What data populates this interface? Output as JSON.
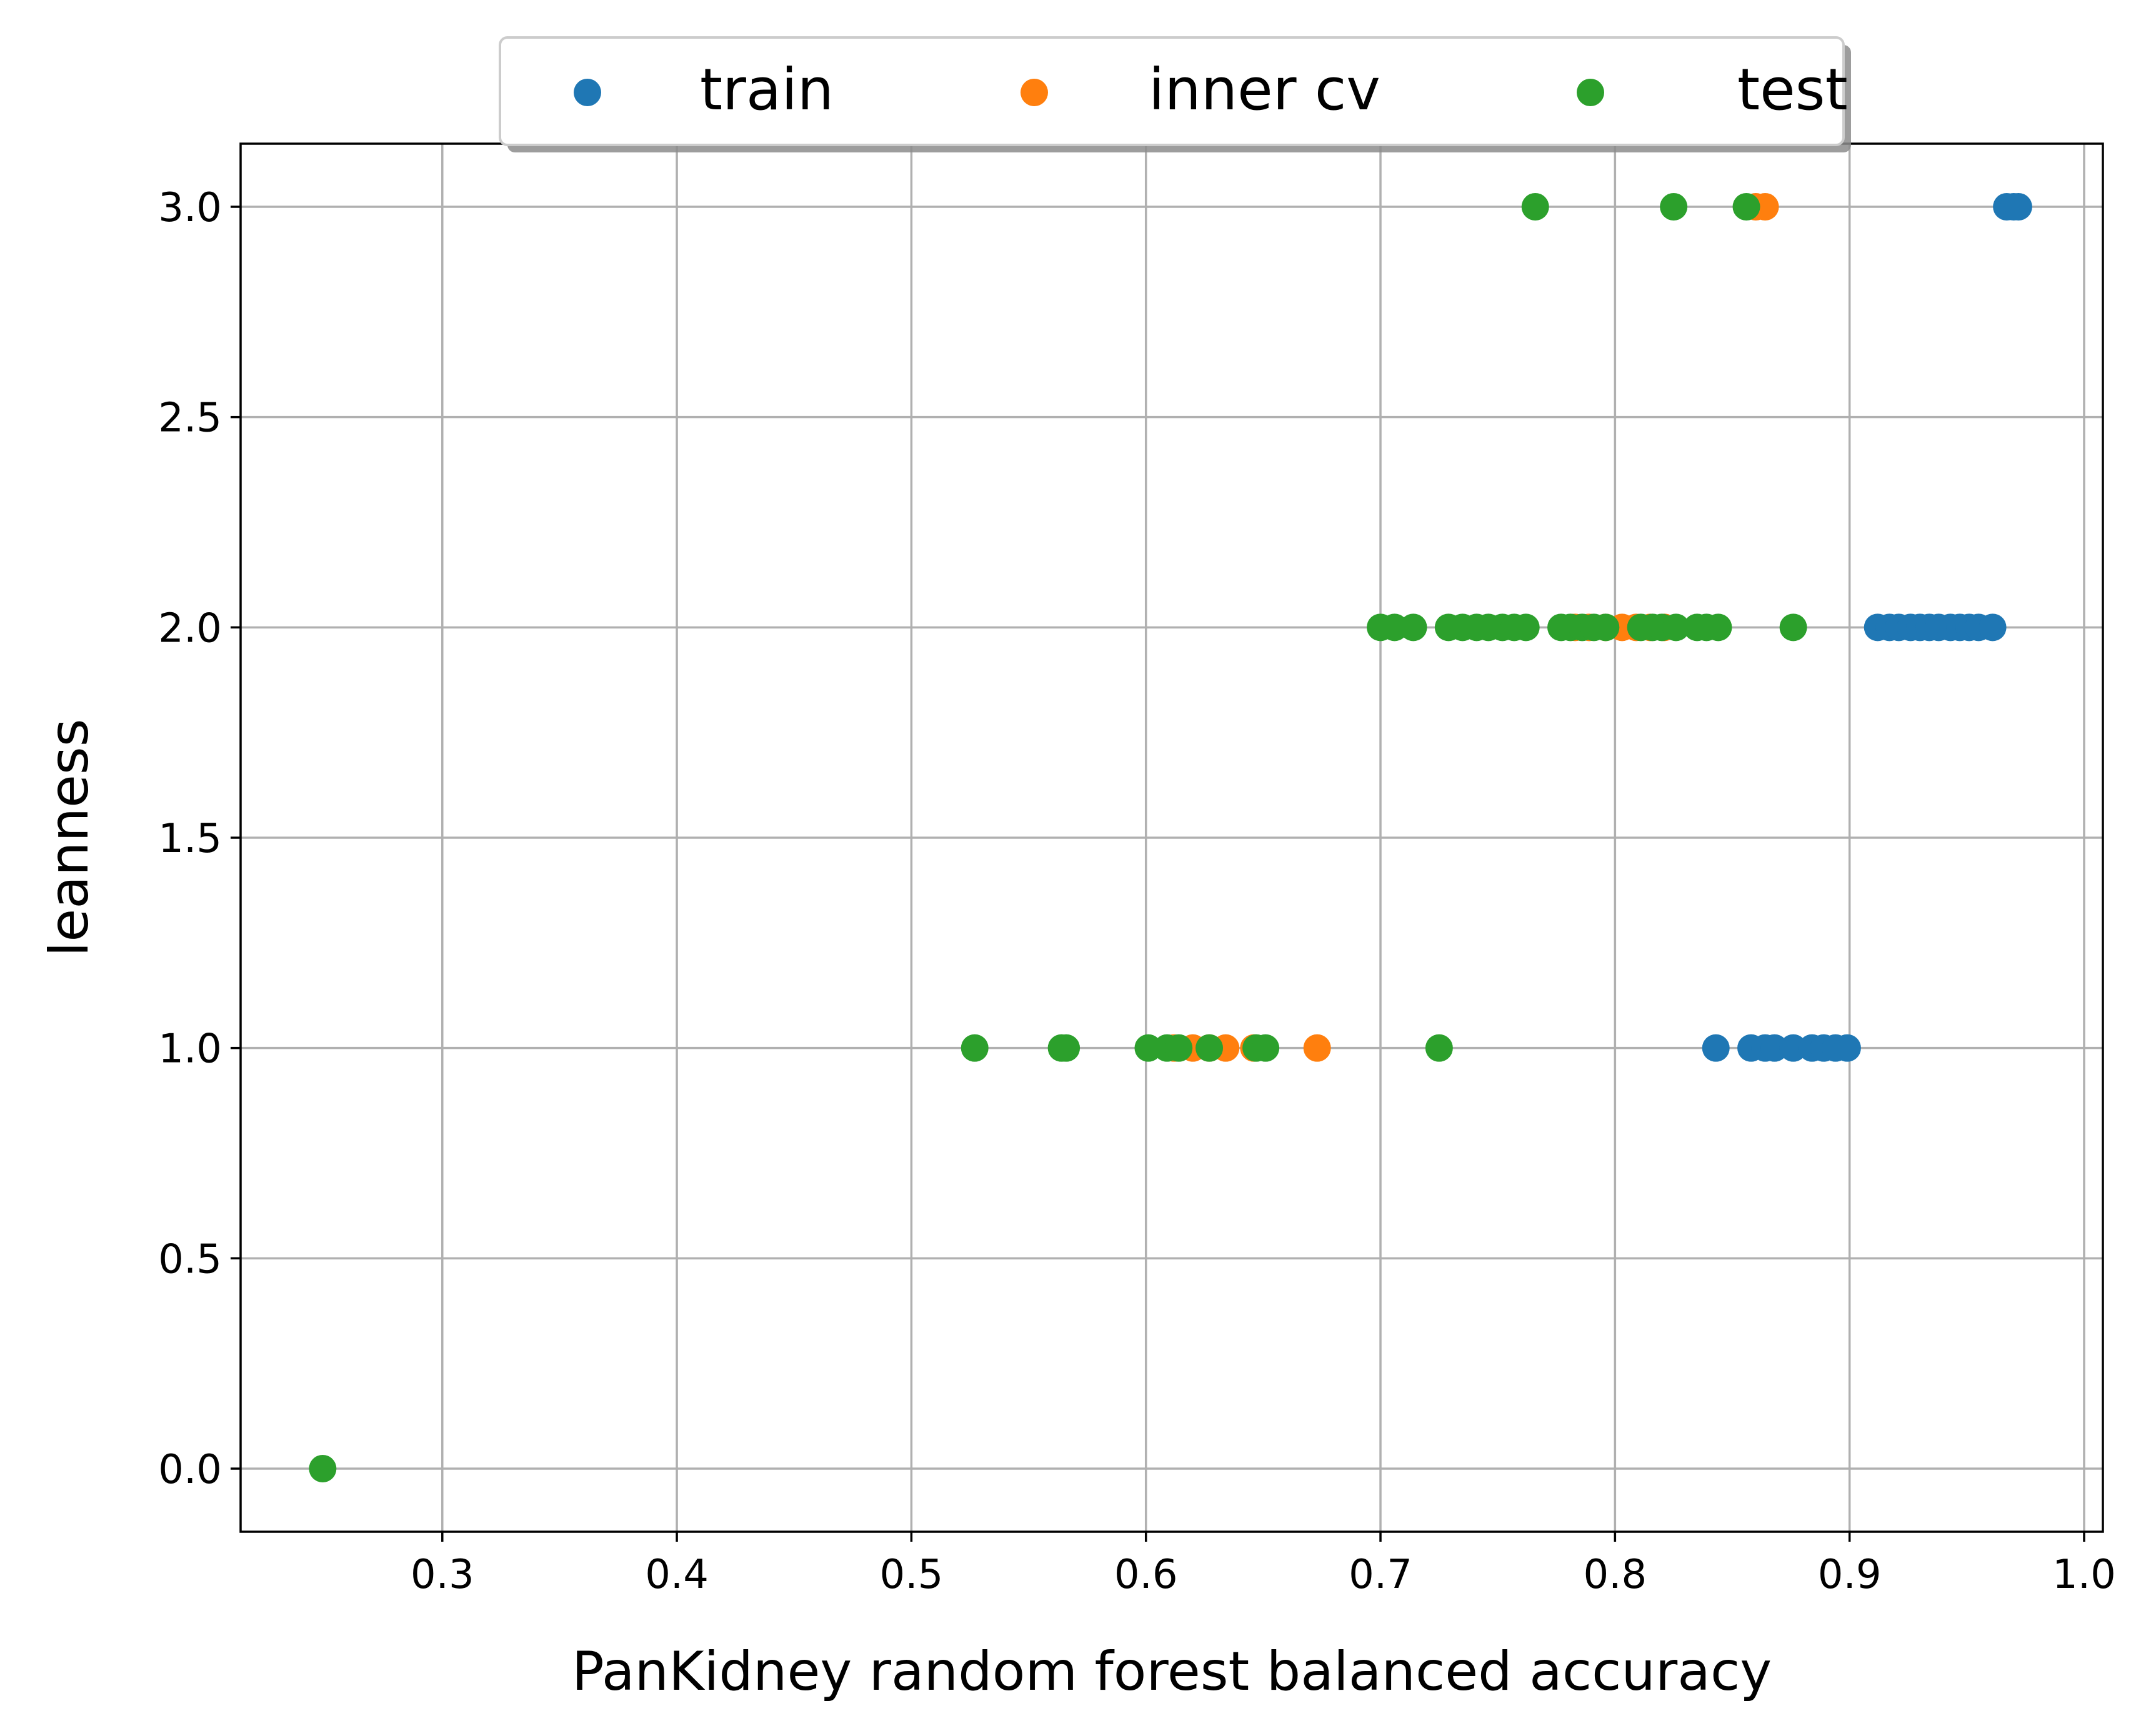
{
  "chart_data": {
    "type": "scatter",
    "xlabel": "PanKidney random forest balanced accuracy",
    "ylabel": "leanness",
    "xlim": [
      0.214,
      1.008
    ],
    "ylim": [
      -0.15,
      3.15
    ],
    "xticks": [
      0.3,
      0.4,
      0.5,
      0.6,
      0.7,
      0.8,
      0.9,
      1.0
    ],
    "xtick_labels": [
      "0.3",
      "0.4",
      "0.5",
      "0.6",
      "0.7",
      "0.8",
      "0.9",
      "1.0"
    ],
    "yticks": [
      0.0,
      0.5,
      1.0,
      1.5,
      2.0,
      2.5,
      3.0
    ],
    "ytick_labels": [
      "0.0",
      "0.5",
      "1.0",
      "1.5",
      "2.0",
      "2.5",
      "3.0"
    ],
    "grid": true,
    "legend": {
      "placement": "top-center",
      "columns": 3
    },
    "series": [
      {
        "name": "train",
        "color": "#1f77b4",
        "points": [
          {
            "x": 0.843,
            "y": 1
          },
          {
            "x": 0.858,
            "y": 1
          },
          {
            "x": 0.864,
            "y": 1
          },
          {
            "x": 0.868,
            "y": 1
          },
          {
            "x": 0.876,
            "y": 1
          },
          {
            "x": 0.884,
            "y": 1
          },
          {
            "x": 0.889,
            "y": 1
          },
          {
            "x": 0.894,
            "y": 1
          },
          {
            "x": 0.899,
            "y": 1
          },
          {
            "x": 0.912,
            "y": 2
          },
          {
            "x": 0.917,
            "y": 2
          },
          {
            "x": 0.921,
            "y": 2
          },
          {
            "x": 0.926,
            "y": 2
          },
          {
            "x": 0.93,
            "y": 2
          },
          {
            "x": 0.934,
            "y": 2
          },
          {
            "x": 0.938,
            "y": 2
          },
          {
            "x": 0.943,
            "y": 2
          },
          {
            "x": 0.947,
            "y": 2
          },
          {
            "x": 0.951,
            "y": 2
          },
          {
            "x": 0.955,
            "y": 2
          },
          {
            "x": 0.961,
            "y": 2
          },
          {
            "x": 0.967,
            "y": 3
          },
          {
            "x": 0.97,
            "y": 3
          },
          {
            "x": 0.972,
            "y": 3
          }
        ]
      },
      {
        "name": "inner cv",
        "color": "#ff7f0e",
        "points": [
          {
            "x": 0.612,
            "y": 1
          },
          {
            "x": 0.62,
            "y": 1
          },
          {
            "x": 0.627,
            "y": 1
          },
          {
            "x": 0.634,
            "y": 1
          },
          {
            "x": 0.646,
            "y": 1
          },
          {
            "x": 0.673,
            "y": 1
          },
          {
            "x": 0.783,
            "y": 2
          },
          {
            "x": 0.789,
            "y": 2
          },
          {
            "x": 0.796,
            "y": 2
          },
          {
            "x": 0.803,
            "y": 2
          },
          {
            "x": 0.809,
            "y": 2
          },
          {
            "x": 0.815,
            "y": 2
          },
          {
            "x": 0.821,
            "y": 2
          },
          {
            "x": 0.86,
            "y": 3
          },
          {
            "x": 0.864,
            "y": 3
          }
        ]
      },
      {
        "name": "test",
        "color": "#2ca02c",
        "points": [
          {
            "x": 0.249,
            "y": 0
          },
          {
            "x": 0.527,
            "y": 1
          },
          {
            "x": 0.564,
            "y": 1
          },
          {
            "x": 0.566,
            "y": 1
          },
          {
            "x": 0.601,
            "y": 1
          },
          {
            "x": 0.609,
            "y": 1
          },
          {
            "x": 0.614,
            "y": 1
          },
          {
            "x": 0.627,
            "y": 1
          },
          {
            "x": 0.647,
            "y": 1
          },
          {
            "x": 0.651,
            "y": 1
          },
          {
            "x": 0.725,
            "y": 1
          },
          {
            "x": 0.7,
            "y": 2
          },
          {
            "x": 0.706,
            "y": 2
          },
          {
            "x": 0.714,
            "y": 2
          },
          {
            "x": 0.729,
            "y": 2
          },
          {
            "x": 0.735,
            "y": 2
          },
          {
            "x": 0.741,
            "y": 2
          },
          {
            "x": 0.746,
            "y": 2
          },
          {
            "x": 0.752,
            "y": 2
          },
          {
            "x": 0.757,
            "y": 2
          },
          {
            "x": 0.762,
            "y": 2
          },
          {
            "x": 0.777,
            "y": 2
          },
          {
            "x": 0.781,
            "y": 2
          },
          {
            "x": 0.786,
            "y": 2
          },
          {
            "x": 0.791,
            "y": 2
          },
          {
            "x": 0.796,
            "y": 2
          },
          {
            "x": 0.811,
            "y": 2
          },
          {
            "x": 0.816,
            "y": 2
          },
          {
            "x": 0.82,
            "y": 2
          },
          {
            "x": 0.826,
            "y": 2
          },
          {
            "x": 0.835,
            "y": 2
          },
          {
            "x": 0.839,
            "y": 2
          },
          {
            "x": 0.844,
            "y": 2
          },
          {
            "x": 0.876,
            "y": 2
          },
          {
            "x": 0.766,
            "y": 3
          },
          {
            "x": 0.825,
            "y": 3
          },
          {
            "x": 0.856,
            "y": 3
          }
        ]
      }
    ]
  }
}
